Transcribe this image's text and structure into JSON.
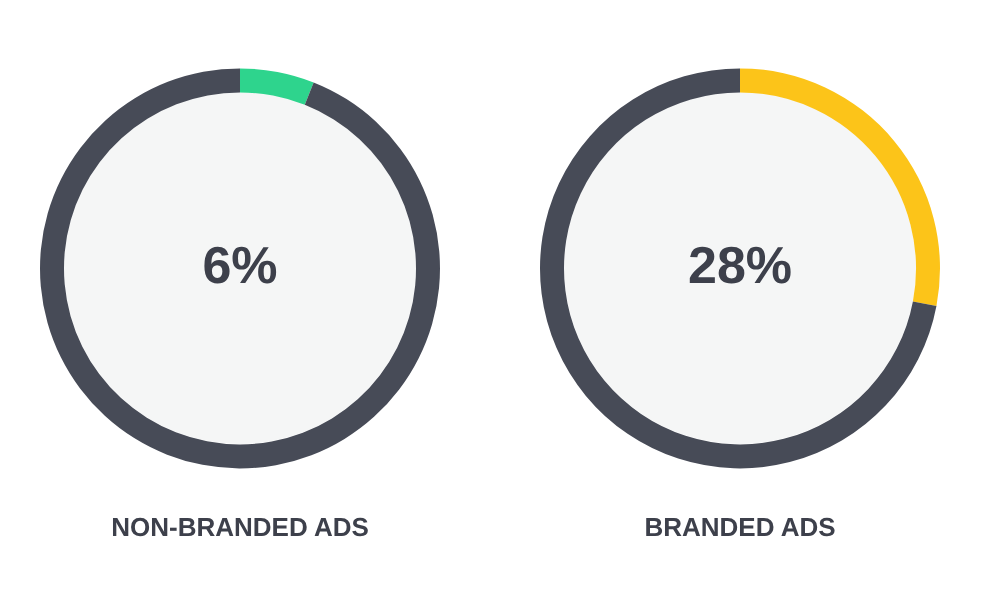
{
  "chart_data": [
    {
      "type": "donut",
      "title": "NON-BRANDED ADS",
      "categories": [
        null,
        null
      ],
      "values": [
        6,
        94
      ],
      "colors": [
        "#2ed48d",
        "#474b57"
      ],
      "annotations": [
        "6%"
      ]
    },
    {
      "type": "donut",
      "title": "BRANDED ADS",
      "categories": [
        null,
        null
      ],
      "values": [
        28,
        72
      ],
      "colors": [
        "#fcc419",
        "#474b57"
      ],
      "annotations": [
        "28%"
      ]
    }
  ]
}
